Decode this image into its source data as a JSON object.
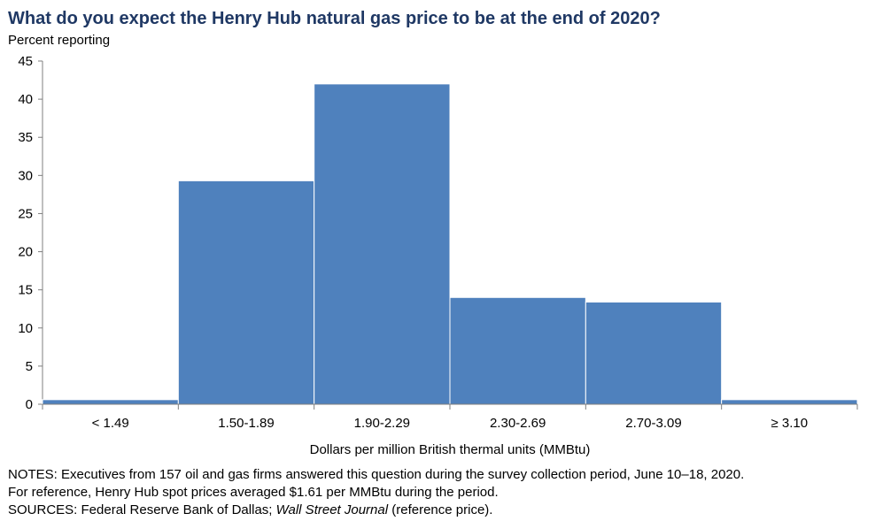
{
  "chart_data": {
    "type": "bar",
    "title": "What do you expect the Henry Hub natural gas price to be at the end of 2020?",
    "subtitle": "Percent reporting",
    "xlabel": "Dollars per million British thermal units (MMBtu)",
    "ylabel": "",
    "categories": [
      "< 1.49",
      "1.50-1.89",
      "1.90-2.29",
      "2.30-2.69",
      "2.70-3.09",
      "≥ 3.10"
    ],
    "values": [
      0.6,
      29.3,
      42.0,
      14.0,
      13.4,
      0.6
    ],
    "ylim": [
      0,
      45
    ],
    "yticks": [
      0,
      5,
      10,
      15,
      20,
      25,
      30,
      35,
      40,
      45
    ],
    "bar_color": "#4F81BD",
    "grid": false,
    "legend": false
  },
  "notes": {
    "line1": "NOTES: Executives from 157 oil and gas firms answered this question during the survey collection period, June 10–18, 2020.",
    "line2": "For reference, Henry Hub spot prices averaged $1.61 per MMBtu during the period.",
    "line3_prefix": "SOURCES: Federal Reserve Bank of Dallas; ",
    "line3_italic": "Wall Street Journal",
    "line3_suffix": " (reference price)."
  }
}
